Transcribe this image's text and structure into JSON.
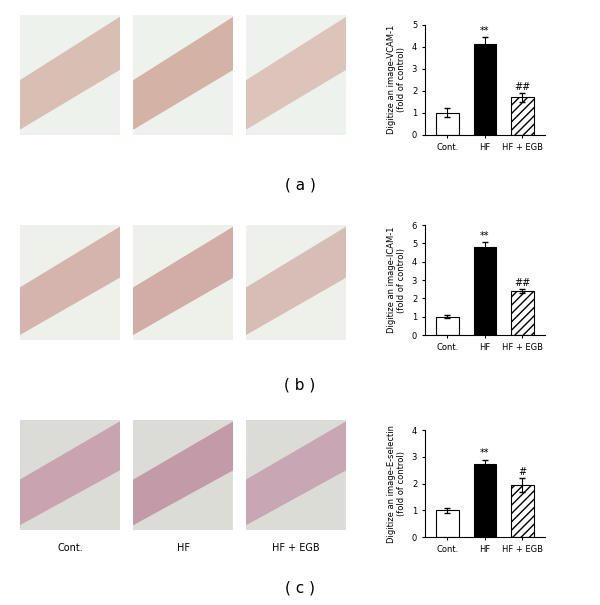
{
  "chart_data": [
    {
      "type": "bar",
      "caption": "( a )",
      "ylabel": "Digitize an image-VCAM-1\n(fold of control)",
      "categories": [
        "Cont.",
        "HF",
        "HF + EGB"
      ],
      "values": [
        1.0,
        4.15,
        1.7
      ],
      "errors": [
        0.2,
        0.3,
        0.2
      ],
      "colors": [
        "#ffffff",
        "#000000",
        "#ffffff"
      ],
      "ylim": [
        0,
        5
      ],
      "yticks": [
        0,
        1,
        2,
        3,
        4,
        5
      ],
      "annotations": [
        {
          "category": "HF",
          "text": "**"
        },
        {
          "category": "HF + EGB",
          "text": "##"
        }
      ]
    },
    {
      "type": "bar",
      "caption": "( b )",
      "ylabel": "Digitize an image-ICAM-1\n(fold of control)",
      "categories": [
        "Cont.",
        "HF",
        "HF + EGB"
      ],
      "values": [
        1.0,
        4.8,
        2.4
      ],
      "errors": [
        0.08,
        0.25,
        0.1
      ],
      "colors": [
        "#ffffff",
        "#000000",
        "#ffffff"
      ],
      "ylim": [
        0,
        6
      ],
      "yticks": [
        0,
        1,
        2,
        3,
        4,
        5,
        6
      ],
      "annotations": [
        {
          "category": "HF",
          "text": "**"
        },
        {
          "category": "HF + EGB",
          "text": "##"
        }
      ]
    },
    {
      "type": "bar",
      "caption": "( c )",
      "ylabel": "Digitize an image-E-selectin\n(fold of control)",
      "categories": [
        "Cont.",
        "HF",
        "HF + EGB"
      ],
      "values": [
        1.0,
        2.75,
        1.95
      ],
      "errors": [
        0.1,
        0.15,
        0.25
      ],
      "colors": [
        "#ffffff",
        "#000000",
        "#ffffff"
      ],
      "ylim": [
        0,
        4
      ],
      "yticks": [
        0,
        1,
        2,
        3,
        4
      ],
      "annotations": [
        {
          "category": "HF",
          "text": "**"
        },
        {
          "category": "HF + EGB",
          "text": "#"
        }
      ]
    }
  ],
  "image_labels": [
    "Cont.",
    "HF",
    "HF + EGB"
  ]
}
